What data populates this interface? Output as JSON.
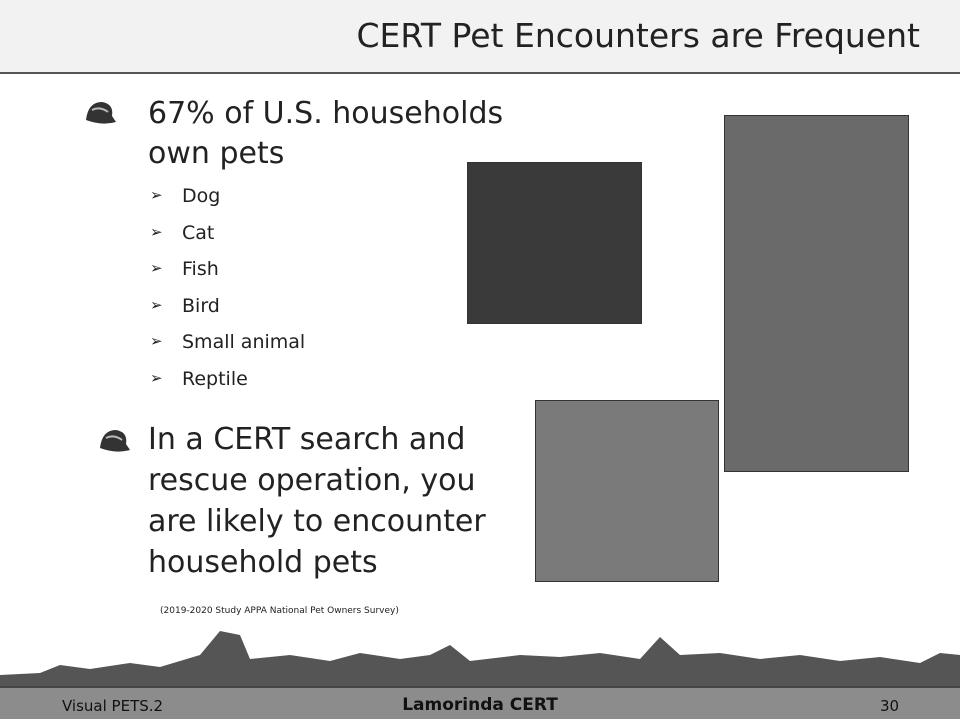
{
  "header": {
    "title": "CERT Pet Encounters are Frequent"
  },
  "bullets": [
    {
      "lines": [
        "67% of U.S. households",
        "own pets"
      ],
      "subitems": [
        "Dog",
        "Cat",
        "Fish",
        "Bird",
        "Small animal",
        "Reptile"
      ]
    },
    {
      "lines": [
        "In a CERT search and",
        "rescue operation, you",
        "are likely to encounter",
        "household pets"
      ]
    }
  ],
  "source": "(2019-2020 Study APPA National Pet Owners Survey)",
  "footer": {
    "left": "Visual PETS.2",
    "center": "Lamorinda CERT",
    "right": "30"
  }
}
